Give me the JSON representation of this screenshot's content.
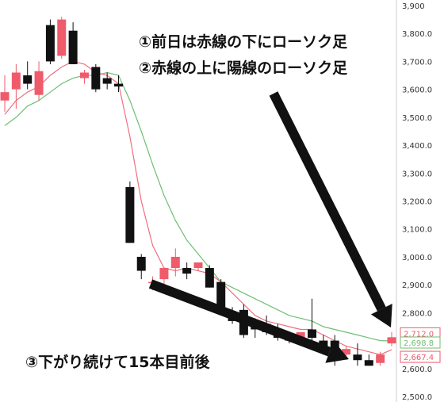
{
  "chart_data": {
    "type": "candlestick",
    "ylim": [
      2500,
      3900
    ],
    "y_ticks": [
      "2,500.0",
      "2,600.0",
      "2,700.0",
      "2,800.0",
      "2,900.0",
      "3,000.0",
      "3,100.0",
      "3,200.0",
      "3,300.0",
      "3,400.0",
      "3,500.0",
      "3,600.0",
      "3,700.0",
      "3,800.0",
      "3,900"
    ],
    "grid": false,
    "colors": {
      "up": "#ef5b6b",
      "down": "#111111",
      "fast_ma": "#ef6f7e",
      "slow_ma": "#6fbf73",
      "arrow": "#111111"
    },
    "candles": [
      {
        "open": 3560,
        "high": 3650,
        "low": 3520,
        "close": 3590
      },
      {
        "open": 3600,
        "high": 3690,
        "low": 3530,
        "close": 3660
      },
      {
        "open": 3650,
        "high": 3700,
        "low": 3600,
        "close": 3620
      },
      {
        "open": 3580,
        "high": 3700,
        "low": 3560,
        "close": 3665
      },
      {
        "open": 3830,
        "high": 3850,
        "low": 3690,
        "close": 3700
      },
      {
        "open": 3720,
        "high": 3860,
        "low": 3710,
        "close": 3850
      },
      {
        "open": 3810,
        "high": 3840,
        "low": 3690,
        "close": 3690
      },
      {
        "open": 3640,
        "high": 3670,
        "low": 3620,
        "close": 3660
      },
      {
        "open": 3680,
        "high": 3690,
        "low": 3590,
        "close": 3600
      },
      {
        "open": 3640,
        "high": 3660,
        "low": 3600,
        "close": 3620
      },
      {
        "open": 3620,
        "high": 3650,
        "low": 3590,
        "close": 3610
      },
      {
        "open": 3250,
        "high": 3270,
        "low": 3050,
        "close": 3050
      },
      {
        "open": 3000,
        "high": 3010,
        "low": 2920,
        "close": 2950
      },
      {
        "open": 2910,
        "high": 2930,
        "low": 2880,
        "close": 2910
      },
      {
        "open": 2920,
        "high": 2960,
        "low": 2880,
        "close": 2960
      },
      {
        "open": 2960,
        "high": 3030,
        "low": 2930,
        "close": 3000
      },
      {
        "open": 2960,
        "high": 2980,
        "low": 2920,
        "close": 2940
      },
      {
        "open": 2960,
        "high": 2980,
        "low": 2950,
        "close": 2980
      },
      {
        "open": 2960,
        "high": 2970,
        "low": 2890,
        "close": 2890
      },
      {
        "open": 2910,
        "high": 2920,
        "low": 2820,
        "close": 2820
      },
      {
        "open": 2800,
        "high": 2820,
        "low": 2760,
        "close": 2770
      },
      {
        "open": 2810,
        "high": 2830,
        "low": 2710,
        "close": 2720
      },
      {
        "open": 2750,
        "high": 2780,
        "low": 2710,
        "close": 2740
      },
      {
        "open": 2760,
        "high": 2790,
        "low": 2720,
        "close": 2730
      },
      {
        "open": 2740,
        "high": 2760,
        "low": 2700,
        "close": 2710
      },
      {
        "open": 2710,
        "high": 2730,
        "low": 2690,
        "close": 2700
      },
      {
        "open": 2700,
        "high": 2730,
        "low": 2690,
        "close": 2730
      },
      {
        "open": 2740,
        "high": 2850,
        "low": 2690,
        "close": 2710
      },
      {
        "open": 2700,
        "high": 2720,
        "low": 2650,
        "close": 2660
      },
      {
        "open": 2700,
        "high": 2720,
        "low": 2610,
        "close": 2630
      },
      {
        "open": 2650,
        "high": 2680,
        "low": 2630,
        "close": 2670
      },
      {
        "open": 2650,
        "high": 2690,
        "low": 2610,
        "close": 2630
      },
      {
        "open": 2630,
        "high": 2650,
        "low": 2610,
        "close": 2610
      },
      {
        "open": 2620,
        "high": 2660,
        "low": 2610,
        "close": 2650
      },
      {
        "open": 2690,
        "high": 2730,
        "low": 2680,
        "close": 2712
      }
    ],
    "fast_ma": [
      3510,
      3560,
      3590,
      3610,
      3650,
      3680,
      3700,
      3690,
      3660,
      3650,
      3620,
      3430,
      3200,
      3040,
      2960,
      2950,
      2960,
      2950,
      2940,
      2910,
      2870,
      2830,
      2790,
      2770,
      2760,
      2750,
      2740,
      2740,
      2720,
      2700,
      2680,
      2670,
      2660,
      2650,
      2667.4
    ],
    "slow_ma": [
      3470,
      3500,
      3540,
      3560,
      3590,
      3620,
      3640,
      3650,
      3650,
      3660,
      3650,
      3560,
      3450,
      3330,
      3220,
      3130,
      3060,
      3010,
      2960,
      2910,
      2890,
      2870,
      2850,
      2830,
      2810,
      2790,
      2780,
      2770,
      2750,
      2740,
      2730,
      2720,
      2710,
      2700,
      2698.8
    ],
    "price_labels": [
      {
        "text": "2,712.0",
        "value": 2712.0,
        "color": "#ef5b6b"
      },
      {
        "text": "2,698.8",
        "value": 2698.8,
        "color": "#6fbf73"
      },
      {
        "text": "2,667.4",
        "value": 2667.4,
        "color": "#ef5b6b"
      }
    ]
  },
  "annotations": {
    "line1": "①前日は赤線の下にローソク足",
    "line2": "②赤線の上に陽線のローソク足",
    "line3": "③下がり続けて15本目前後"
  }
}
